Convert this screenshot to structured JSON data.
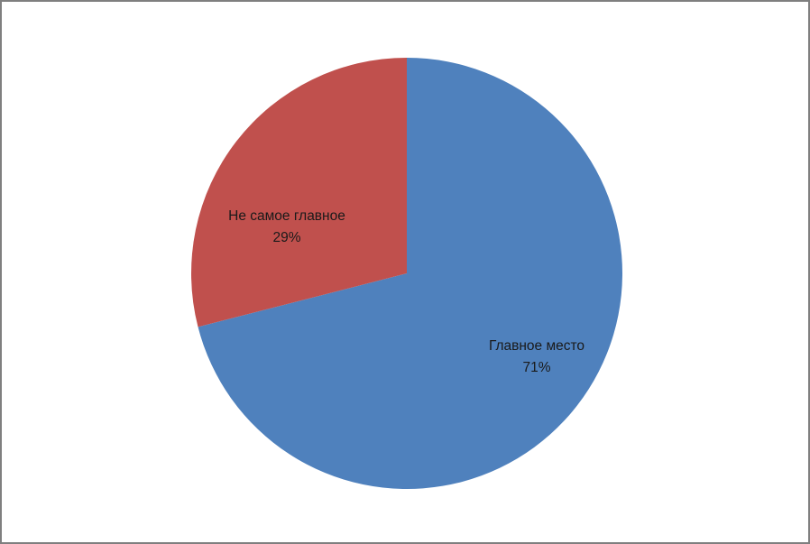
{
  "frame": {
    "background_color": "#FFFFFF",
    "border_color": "#7F7F7F"
  },
  "chart_data": {
    "type": "pie",
    "title": "",
    "legend": "none",
    "data_labels": "category name and percentage, inside slices",
    "start_angle_deg": 0,
    "direction": "clockwise",
    "slices": [
      {
        "label": "Главное место",
        "value": 71,
        "pct_label": "71%",
        "color": "#4F81BD"
      },
      {
        "label": "Не самое главное",
        "value": 29,
        "pct_label": "29%",
        "color": "#C0504D"
      }
    ]
  }
}
